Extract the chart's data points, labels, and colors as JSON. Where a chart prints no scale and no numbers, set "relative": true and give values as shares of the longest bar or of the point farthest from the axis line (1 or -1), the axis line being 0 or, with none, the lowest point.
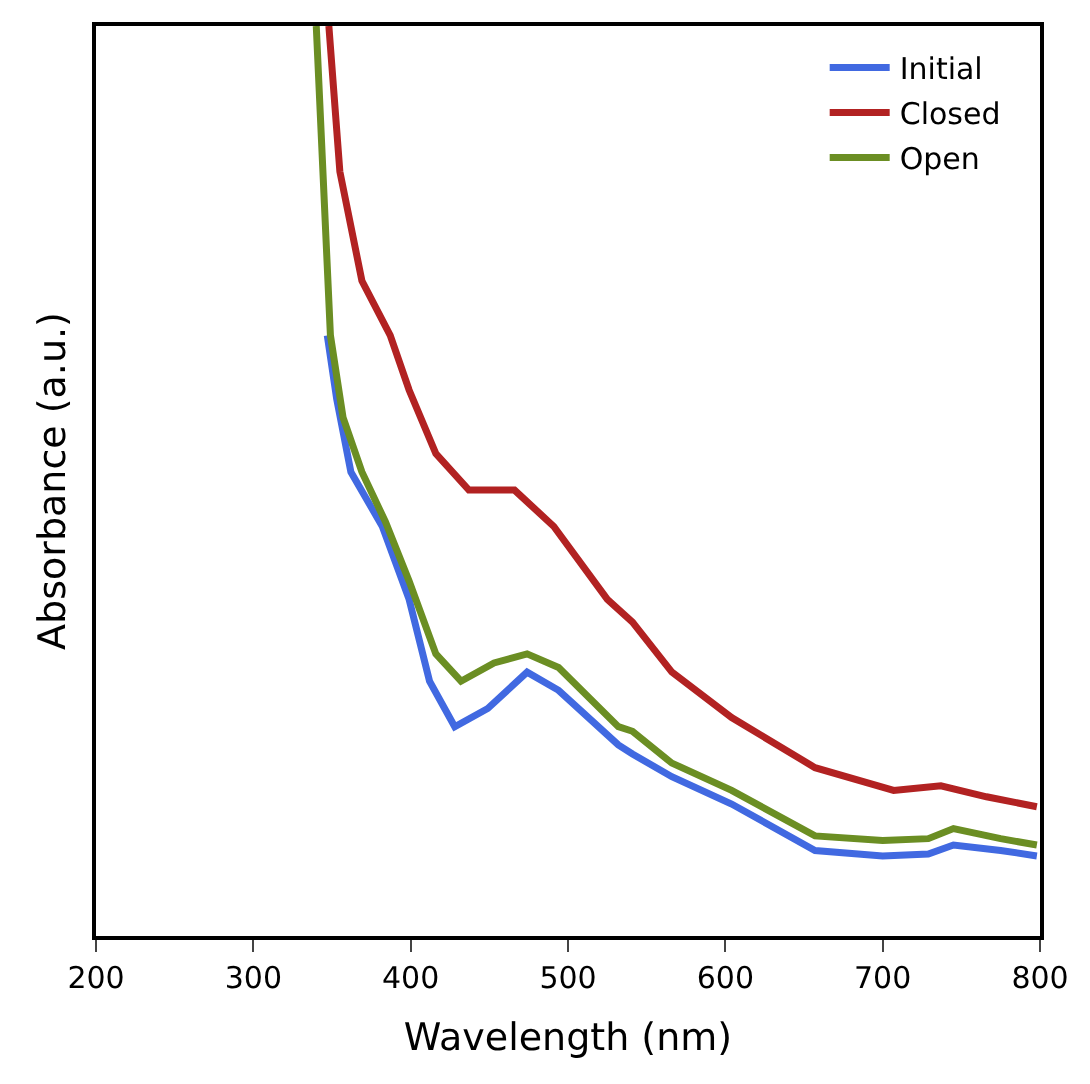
{
  "chart_data": {
    "type": "line",
    "xlabel": "Wavelength (nm)",
    "ylabel": "Absorbance (a.u.)",
    "relative": true,
    "xlim": [
      200,
      800
    ],
    "xticks": [
      200,
      300,
      400,
      500,
      600,
      700,
      800
    ],
    "legend": "top right",
    "marker": "none",
    "line_style": "solid",
    "series": [
      {
        "name": "Initial",
        "color": "#4169e1",
        "x": [
          347,
          353,
          362,
          372,
          382,
          399,
          412,
          428,
          449,
          474,
          494,
          532,
          541,
          566,
          604,
          657,
          700,
          729,
          745,
          775,
          798
        ],
        "values": [
          0.66,
          0.59,
          0.51,
          0.48,
          0.45,
          0.37,
          0.28,
          0.23,
          0.25,
          0.29,
          0.27,
          0.21,
          0.2,
          0.175,
          0.145,
          0.094,
          0.088,
          0.09,
          0.1,
          0.094,
          0.088
        ]
      },
      {
        "name": "Closed",
        "color": "#b22222",
        "x": [
          348,
          355,
          369,
          387,
          399,
          416,
          437,
          466,
          491,
          525,
          541,
          566,
          604,
          657,
          707,
          737,
          766,
          798
        ],
        "values": [
          1.0,
          0.84,
          0.72,
          0.66,
          0.6,
          0.53,
          0.49,
          0.49,
          0.45,
          0.37,
          0.345,
          0.29,
          0.24,
          0.185,
          0.16,
          0.165,
          0.153,
          0.142
        ]
      },
      {
        "name": "Open",
        "color": "#6b8e23",
        "x": [
          340,
          349,
          357,
          369,
          384,
          399,
          416,
          432,
          453,
          474,
          494,
          532,
          541,
          566,
          604,
          657,
          700,
          729,
          745,
          775,
          798
        ],
        "values": [
          1.0,
          0.66,
          0.57,
          0.51,
          0.455,
          0.39,
          0.31,
          0.28,
          0.3,
          0.31,
          0.295,
          0.23,
          0.225,
          0.19,
          0.16,
          0.11,
          0.105,
          0.107,
          0.118,
          0.107,
          0.1
        ]
      }
    ]
  }
}
